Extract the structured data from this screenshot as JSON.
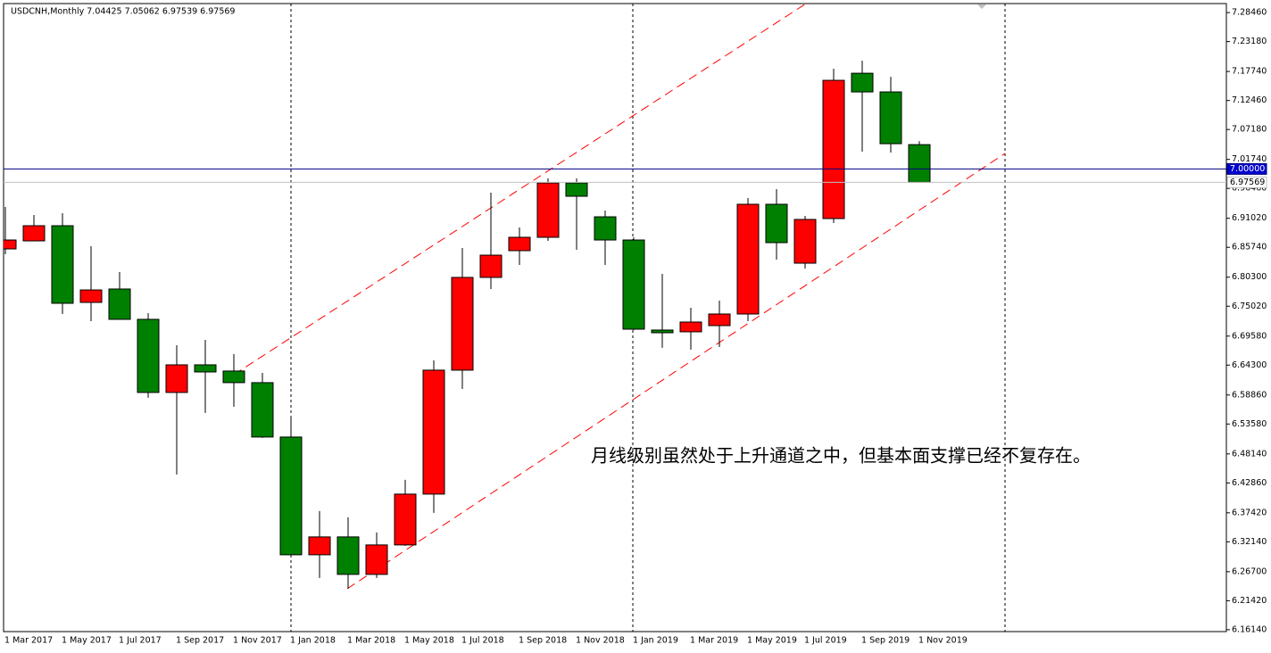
{
  "chart_data": {
    "type": "candlestick",
    "title": "USDCNH,Monthly  7.04425 7.05062 6.97539 6.97569",
    "annotation": "月线级别虽然处于上升通道之中，但基本面支撑已经不复存在。",
    "categories": [
      "1 Mar 2017",
      null,
      "1 May 2017",
      null,
      "1 Jul 2017",
      null,
      "1 Sep 2017",
      null,
      "1 Nov 2017",
      null,
      "1 Jan 2018",
      null,
      "1 Mar 2018",
      null,
      "1 May 2018",
      null,
      "1 Jul 2018",
      null,
      "1 Sep 2018",
      null,
      "1 Nov 2018",
      null,
      "1 Jan 2019",
      null,
      "1 Mar 2019",
      null,
      "1 May 2019",
      null,
      "1 Jul 2019",
      null,
      "1 Sep 2019",
      null,
      "1 Nov 2019"
    ],
    "open": [
      6.8545,
      6.8691,
      6.8967,
      6.7571,
      6.7815,
      6.7263,
      6.5932,
      6.6435,
      6.6322,
      6.6111,
      6.5121,
      6.2978,
      6.3303,
      6.2621,
      6.3157,
      6.4082,
      6.6338,
      6.8026,
      6.8513,
      6.8756,
      6.9746,
      6.9129,
      6.8707,
      6.7068,
      6.7036,
      6.7149,
      6.736,
      6.9357,
      6.8285,
      6.9097,
      7.1742,
      7.1402,
      7.04425
    ],
    "high": [
      6.9308,
      6.9162,
      6.9194,
      6.8594,
      6.8123,
      6.7376,
      6.6792,
      6.689,
      6.663,
      6.6289,
      6.5494,
      6.3773,
      6.366,
      6.3384,
      6.4342,
      6.6516,
      6.8561,
      6.9568,
      6.8935,
      6.9827,
      6.9827,
      6.9243,
      6.8756,
      6.8091,
      6.7474,
      6.7604,
      6.947,
      6.9632,
      6.9146,
      7.1824,
      7.197,
      7.1677,
      7.05062
    ],
    "low": [
      6.8448,
      6.8691,
      6.736,
      6.723,
      6.7263,
      6.5835,
      6.4439,
      6.5559,
      6.5672,
      6.5105,
      6.2978,
      6.2556,
      6.2361,
      6.2556,
      6.3141,
      6.3741,
      6.5997,
      6.7815,
      6.8253,
      6.8691,
      6.8529,
      6.8253,
      6.7068,
      6.6744,
      6.6711,
      6.676,
      6.723,
      6.835,
      6.8188,
      6.9016,
      7.0314,
      7.0298,
      6.97539
    ],
    "close": [
      6.8707,
      6.8967,
      6.7555,
      6.7798,
      6.7263,
      6.5932,
      6.6435,
      6.6305,
      6.6111,
      6.5121,
      6.2978,
      6.3303,
      6.2621,
      6.3157,
      6.4082,
      6.6338,
      6.8026,
      6.8431,
      6.8756,
      6.9746,
      6.9503,
      6.8707,
      6.7084,
      6.7019,
      6.7214,
      6.736,
      6.9357,
      6.8659,
      6.9081,
      7.1613,
      7.1402,
      7.046,
      6.97569
    ],
    "up_color": "#ff0000",
    "down_color": "#008000",
    "ylim": [
      6.158,
      7.301
    ],
    "yticks": [
      {
        "value": 7.2846,
        "label": "7.28460"
      },
      {
        "value": 7.2318,
        "label": "7.23180"
      },
      {
        "value": 7.1774,
        "label": "7.17740"
      },
      {
        "value": 7.1246,
        "label": "7.12460"
      },
      {
        "value": 7.0718,
        "label": "7.07180"
      },
      {
        "value": 7.0174,
        "label": "7.01740"
      },
      {
        "value": 6.9646,
        "label": "6.96460"
      },
      {
        "value": 6.9102,
        "label": "6.91020"
      },
      {
        "value": 6.8574,
        "label": "6.85740"
      },
      {
        "value": 6.803,
        "label": "6.80300"
      },
      {
        "value": 6.7502,
        "label": "6.75020"
      },
      {
        "value": 6.6958,
        "label": "6.69580"
      },
      {
        "value": 6.643,
        "label": "6.64300"
      },
      {
        "value": 6.5886,
        "label": "6.58860"
      },
      {
        "value": 6.5358,
        "label": "6.53580"
      },
      {
        "value": 6.4814,
        "label": "6.48140"
      },
      {
        "value": 6.4286,
        "label": "6.42860"
      },
      {
        "value": 6.3742,
        "label": "6.37420"
      },
      {
        "value": 6.3214,
        "label": "6.32140"
      },
      {
        "value": 6.267,
        "label": "6.26700"
      },
      {
        "value": 6.2142,
        "label": "6.21420"
      },
      {
        "value": 6.1614,
        "label": "6.16140"
      }
    ],
    "hlines": [
      {
        "value": 7,
        "label": "7.00000",
        "color": "#000080",
        "label_fill": "#0000cd",
        "label_text": "#ffffff"
      },
      {
        "value": 6.97569,
        "label": "6.97569",
        "color": "#c0c0c0",
        "label_fill": "#ffffff",
        "label_text": "#000000"
      }
    ],
    "grid": false
  }
}
